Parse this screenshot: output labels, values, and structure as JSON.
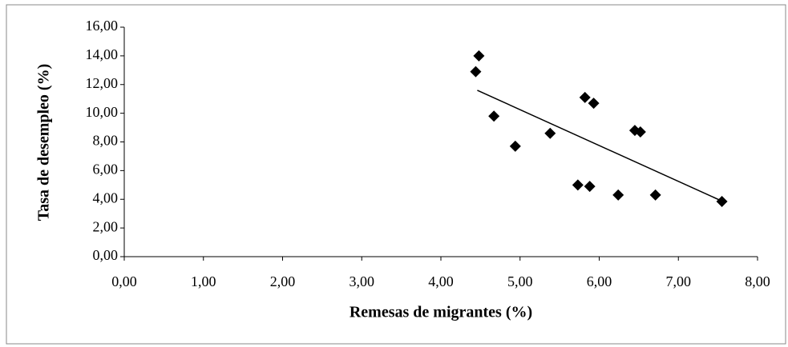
{
  "chart_data": {
    "type": "scatter",
    "x_label": "Remesas de migrantes (%)",
    "y_label": "Tasa de desempleo (%)",
    "series": [
      {
        "color": "#000000",
        "x": [
          4.44,
          4.48,
          4.67,
          4.94,
          5.38,
          5.73,
          5.88,
          5.82,
          5.93,
          6.24,
          6.45,
          6.52,
          6.71,
          7.55
        ],
        "values": [
          12.9,
          14.0,
          9.8,
          7.7,
          8.6,
          5.0,
          4.9,
          11.1,
          10.7,
          4.3,
          8.8,
          8.7,
          4.3,
          3.85
        ]
      }
    ],
    "trendline": {
      "color": "#000000",
      "x": [
        4.46,
        7.56
      ],
      "values": [
        11.6,
        3.85
      ]
    },
    "xlim": [
      0,
      8
    ],
    "xticks": [
      {
        "value": 0,
        "label": "0,00"
      },
      {
        "value": 1,
        "label": "1,00"
      },
      {
        "value": 2,
        "label": "2,00"
      },
      {
        "value": 3,
        "label": "3,00"
      },
      {
        "value": 4,
        "label": "4,00"
      },
      {
        "value": 5,
        "label": "5,00"
      },
      {
        "value": 6,
        "label": "6,00"
      },
      {
        "value": 7,
        "label": "7,00"
      },
      {
        "value": 8,
        "label": "8,00"
      }
    ],
    "ylim": [
      0,
      16
    ],
    "yticks": [
      {
        "value": 0,
        "label": "0,00"
      },
      {
        "value": 2,
        "label": "2,00"
      },
      {
        "value": 4,
        "label": "4,00"
      },
      {
        "value": 6,
        "label": "6,00"
      },
      {
        "value": 8,
        "label": "8,00"
      },
      {
        "value": 10,
        "label": "10,00"
      },
      {
        "value": 12,
        "label": "12,00"
      },
      {
        "value": 14,
        "label": "14,00"
      },
      {
        "value": 16,
        "label": "16,00"
      }
    ],
    "grid": false
  }
}
